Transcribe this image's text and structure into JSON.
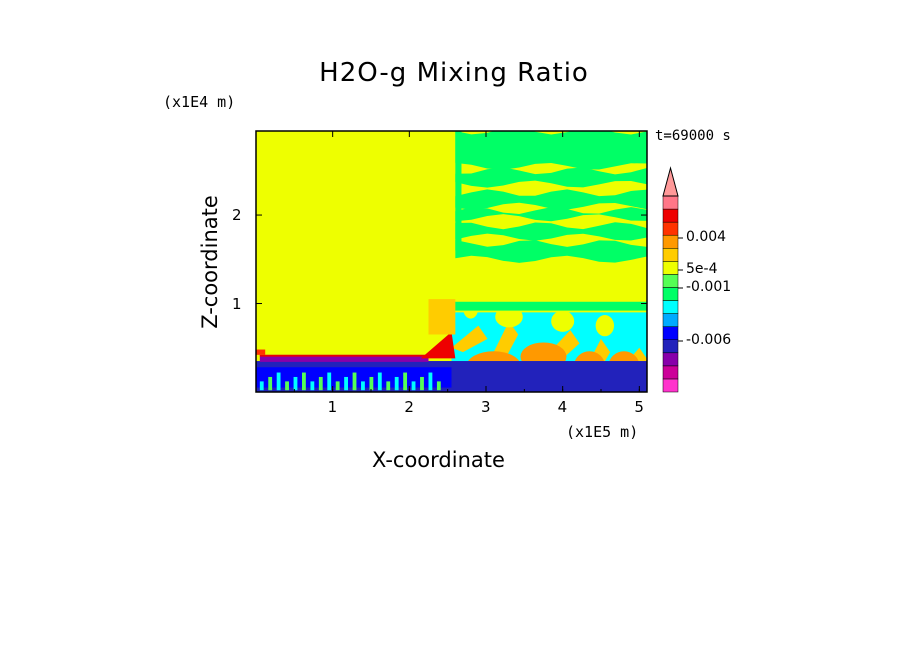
{
  "chart_data": {
    "type": "heatmap",
    "title": "H2O-g Mixing Ratio",
    "xlabel": "X-coordinate",
    "ylabel": "Z-coordinate",
    "x_unit": "(x1E5 m)",
    "z_unit": "(x1E4 m)",
    "time_label": "t=69000 s",
    "xlim": [
      0,
      5.1
    ],
    "ylim": [
      0,
      2.95
    ],
    "x_ticks": [
      1,
      2,
      3,
      4,
      5
    ],
    "y_ticks": [
      1,
      2
    ],
    "colorbar": {
      "extend": "max",
      "colors": [
        "#ff33cc",
        "#cc0099",
        "#8800aa",
        "#2222bb",
        "#0000ff",
        "#00aaff",
        "#00ffff",
        "#00ff66",
        "#55ff55",
        "#eeff00",
        "#ffcc00",
        "#ff9900",
        "#ff3300",
        "#ee0000",
        "#ff7788",
        "#ff9999"
      ],
      "labels": [
        {
          "text": "0.004",
          "level": 0.004
        },
        {
          "text": "5e-4",
          "level": 0.0005
        },
        {
          "text": "-0.001",
          "level": -0.001
        },
        {
          "text": "-0.006",
          "level": -0.006
        }
      ]
    },
    "regions": [
      {
        "name": "background",
        "color": "#eeff00",
        "x": [
          0,
          5.1
        ],
        "z": [
          0,
          2.95
        ]
      },
      {
        "name": "upper-layers-right",
        "color": "#00ff66",
        "x": [
          2.55,
          5.1
        ],
        "z": [
          1.45,
          2.95
        ]
      },
      {
        "name": "lower-mixed-right",
        "color": "#00ffff",
        "x": [
          2.55,
          5.1
        ],
        "z": [
          0.0,
          1.0
        ]
      },
      {
        "name": "surface-layer",
        "color": "#2222bb",
        "x": [
          0,
          5.1
        ],
        "z": [
          0,
          0.35
        ]
      },
      {
        "name": "inversion-band",
        "color": "#8800aa",
        "x": [
          0.05,
          2.2
        ],
        "z": [
          0.34,
          0.42
        ]
      },
      {
        "name": "front-peak",
        "color": "#ee0000",
        "x": [
          2.15,
          2.6
        ],
        "z": [
          0.35,
          0.65
        ]
      }
    ]
  }
}
